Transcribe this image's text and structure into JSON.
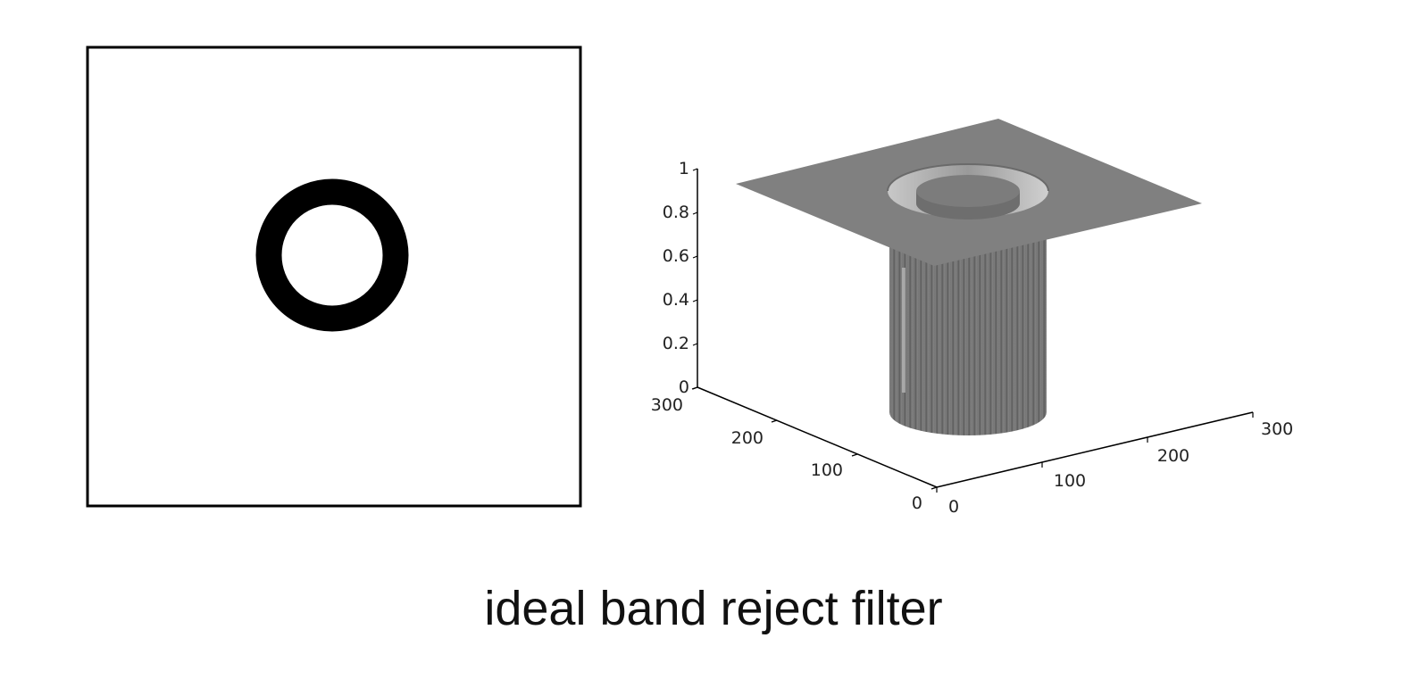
{
  "caption": "ideal band reject filter",
  "colors": {
    "ring": "#000000",
    "background": "#ffffff",
    "surface": "#7f7f7f",
    "cylinder": "#707070",
    "axis": "#000000"
  },
  "left_panel": {
    "content": "2D filter mask: black annular band (reject region) on white"
  },
  "surface_plot": {
    "z_ticks": [
      "0",
      "0.2",
      "0.4",
      "0.6",
      "0.8",
      "1"
    ],
    "y_ticks": [
      "0",
      "100",
      "200",
      "300"
    ],
    "x_ticks": [
      "0",
      "100",
      "200",
      "300"
    ]
  }
}
